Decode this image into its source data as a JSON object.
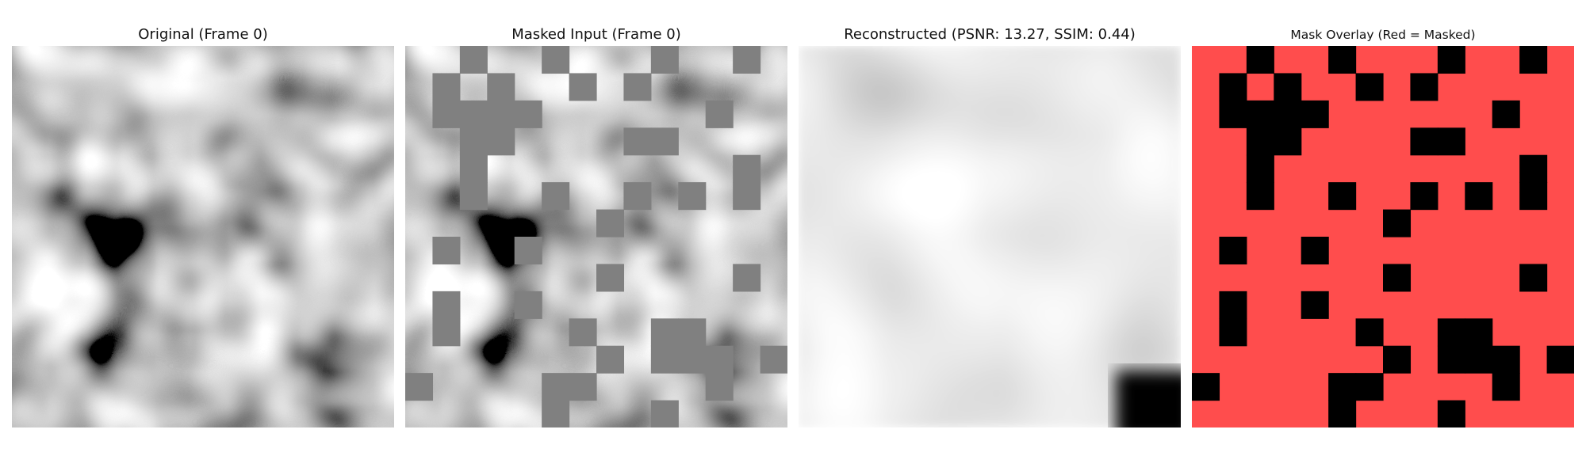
{
  "panels": [
    {
      "title": "Original (Frame 0)",
      "image": "grayscale-noise-texture"
    },
    {
      "title": "Masked Input (Frame 0)",
      "image": "grayscale-noise-texture-with-gray-masked-patches"
    },
    {
      "title": "Reconstructed (PSNR: 13.27, SSIM: 0.44)",
      "image": "blurry-grayscale-reconstruction"
    },
    {
      "title": "Mask Overlay (Red = Masked)",
      "image": "red-mask-overlay-with-black-visible-patches"
    }
  ],
  "colors": {
    "mask_overlay_red": "#ff4d4d",
    "mask_overlay_black": "#000000",
    "masked_patch_gray": "#808080"
  },
  "mask": {
    "grid_size": 14,
    "visible_patches": [
      [
        0,
        2
      ],
      [
        0,
        5
      ],
      [
        0,
        9
      ],
      [
        0,
        12
      ],
      [
        1,
        1
      ],
      [
        1,
        3
      ],
      [
        1,
        6
      ],
      [
        1,
        8
      ],
      [
        2,
        1
      ],
      [
        2,
        2
      ],
      [
        2,
        3
      ],
      [
        2,
        4
      ],
      [
        2,
        11
      ],
      [
        3,
        2
      ],
      [
        3,
        3
      ],
      [
        3,
        8
      ],
      [
        3,
        9
      ],
      [
        4,
        2
      ],
      [
        4,
        12
      ],
      [
        5,
        2
      ],
      [
        5,
        5
      ],
      [
        5,
        8
      ],
      [
        5,
        10
      ],
      [
        5,
        12
      ],
      [
        6,
        7
      ],
      [
        7,
        1
      ],
      [
        7,
        4
      ],
      [
        8,
        7
      ],
      [
        8,
        12
      ],
      [
        9,
        1
      ],
      [
        9,
        4
      ],
      [
        10,
        1
      ],
      [
        10,
        6
      ],
      [
        10,
        9
      ],
      [
        10,
        10
      ],
      [
        11,
        7
      ],
      [
        11,
        9
      ],
      [
        11,
        10
      ],
      [
        11,
        11
      ],
      [
        11,
        13
      ],
      [
        12,
        0
      ],
      [
        12,
        5
      ],
      [
        12,
        6
      ],
      [
        12,
        11
      ],
      [
        13,
        5
      ],
      [
        13,
        9
      ]
    ]
  }
}
